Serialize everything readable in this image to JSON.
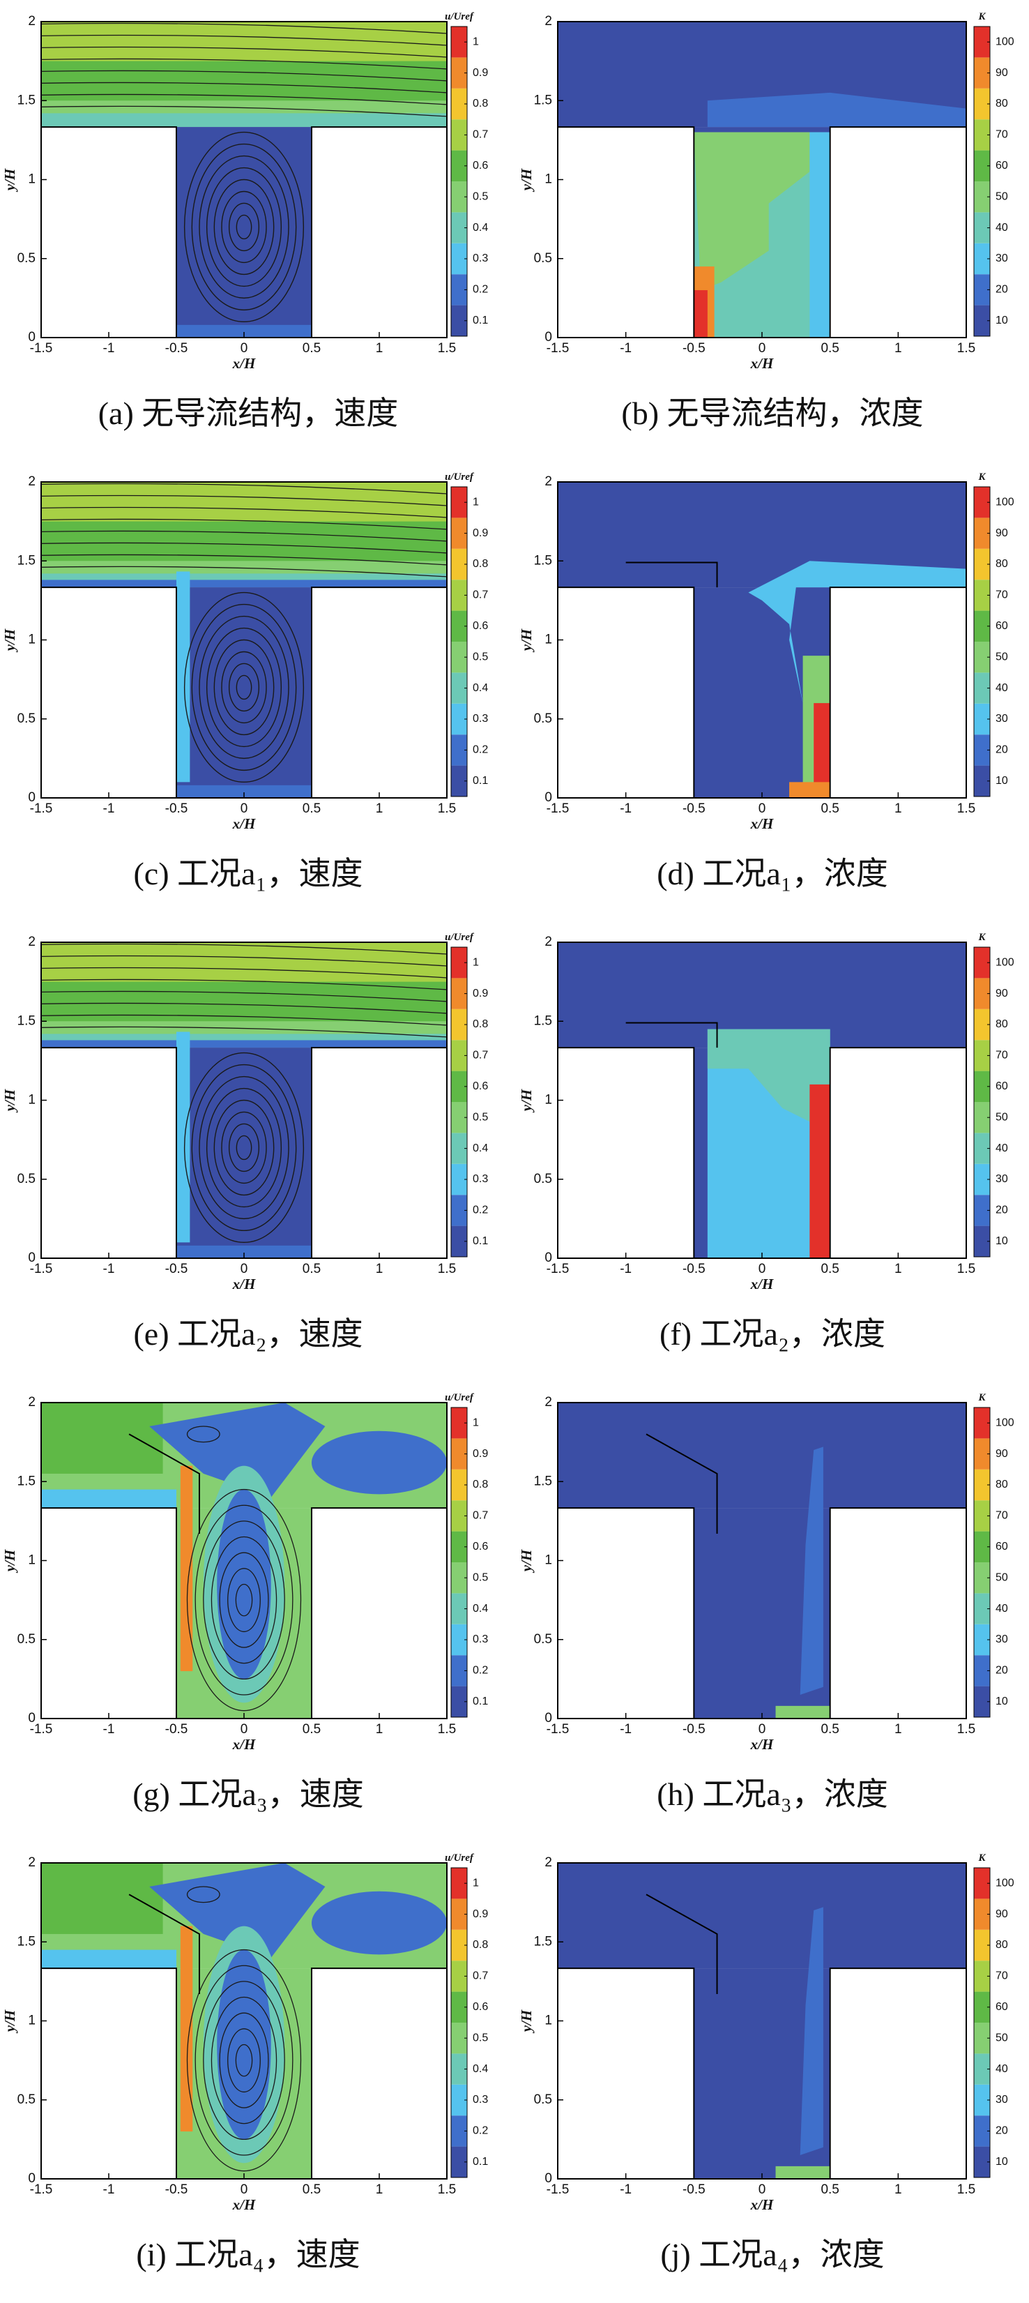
{
  "chart_data": [
    {
      "type": "contour",
      "caption": "(a) 无导流结构，速度",
      "x_label": "x/H",
      "y_label": "y/H",
      "xlim": [
        -1.5,
        1.5
      ],
      "ylim": [
        0,
        2
      ],
      "xticks": [
        -1.5,
        -1,
        -0.5,
        0,
        0.5,
        1,
        1.5
      ],
      "yticks": [
        0,
        0.5,
        1,
        1.5,
        2
      ],
      "colorbar": {
        "label": "u/Uref",
        "lim": [
          0.05,
          1.05
        ],
        "ticks": [
          0.1,
          0.2,
          0.3,
          0.4,
          0.5,
          0.6,
          0.7,
          0.8,
          0.9,
          1
        ],
        "colors": [
          "#3b4ea5",
          "#3f6fcb",
          "#55c3ee",
          "#6cc9b6",
          "#86cf72",
          "#5fb946",
          "#a7d045",
          "#f3c52e",
          "#f08a2c",
          "#e3312a"
        ]
      }
    },
    {
      "type": "contour",
      "caption": "(b) 无导流结构，浓度",
      "x_label": "x/H",
      "y_label": "y/H",
      "xlim": [
        -1.5,
        1.5
      ],
      "ylim": [
        0,
        2
      ],
      "xticks": [
        -1.5,
        -1,
        -0.5,
        0,
        0.5,
        1,
        1.5
      ],
      "yticks": [
        0,
        0.5,
        1,
        1.5,
        2
      ],
      "colorbar": {
        "label": "K",
        "lim": [
          5,
          105
        ],
        "ticks": [
          10,
          20,
          30,
          40,
          50,
          60,
          70,
          80,
          90,
          100
        ],
        "colors": [
          "#3b4ea5",
          "#3f6fcb",
          "#55c3ee",
          "#6cc9b6",
          "#86cf72",
          "#5fb946",
          "#a7d045",
          "#f3c52e",
          "#f08a2c",
          "#e3312a"
        ]
      }
    },
    {
      "type": "contour",
      "caption": "(c) 工况a₁，速度",
      "x_label": "x/H",
      "y_label": "y/H",
      "xlim": [
        -1.5,
        1.5
      ],
      "ylim": [
        0,
        2
      ],
      "xticks": [
        -1.5,
        -1,
        -0.5,
        0,
        0.5,
        1,
        1.5
      ],
      "yticks": [
        0,
        0.5,
        1,
        1.5,
        2
      ],
      "colorbar": {
        "label": "u/Uref",
        "lim": [
          0.05,
          1.05
        ],
        "ticks": [
          0.1,
          0.2,
          0.3,
          0.4,
          0.5,
          0.6,
          0.7,
          0.8,
          0.9,
          1
        ],
        "colors": [
          "#3b4ea5",
          "#3f6fcb",
          "#55c3ee",
          "#6cc9b6",
          "#86cf72",
          "#5fb946",
          "#a7d045",
          "#f3c52e",
          "#f08a2c",
          "#e3312a"
        ]
      }
    },
    {
      "type": "contour",
      "caption": "(d) 工况a₁，浓度",
      "x_label": "x/H",
      "y_label": "y/H",
      "xlim": [
        -1.5,
        1.5
      ],
      "ylim": [
        0,
        2
      ],
      "xticks": [
        -1.5,
        -1,
        -0.5,
        0,
        0.5,
        1,
        1.5
      ],
      "yticks": [
        0,
        0.5,
        1,
        1.5,
        2
      ],
      "colorbar": {
        "label": "K",
        "lim": [
          5,
          105
        ],
        "ticks": [
          10,
          20,
          30,
          40,
          50,
          60,
          70,
          80,
          90,
          100
        ],
        "colors": [
          "#3b4ea5",
          "#3f6fcb",
          "#55c3ee",
          "#6cc9b6",
          "#86cf72",
          "#5fb946",
          "#a7d045",
          "#f3c52e",
          "#f08a2c",
          "#e3312a"
        ]
      }
    },
    {
      "type": "contour",
      "caption": "(e) 工况a₂，速度",
      "x_label": "x/H",
      "y_label": "y/H",
      "xlim": [
        -1.5,
        1.5
      ],
      "ylim": [
        0,
        2
      ],
      "xticks": [
        -1.5,
        -1,
        -0.5,
        0,
        0.5,
        1,
        1.5
      ],
      "yticks": [
        0,
        0.5,
        1,
        1.5,
        2
      ],
      "colorbar": {
        "label": "u/Uref",
        "lim": [
          0.05,
          1.05
        ],
        "ticks": [
          0.1,
          0.2,
          0.3,
          0.4,
          0.5,
          0.6,
          0.7,
          0.8,
          0.9,
          1
        ],
        "colors": [
          "#3b4ea5",
          "#3f6fcb",
          "#55c3ee",
          "#6cc9b6",
          "#86cf72",
          "#5fb946",
          "#a7d045",
          "#f3c52e",
          "#f08a2c",
          "#e3312a"
        ]
      }
    },
    {
      "type": "contour",
      "caption": "(f) 工况a₂，浓度",
      "x_label": "x/H",
      "y_label": "y/H",
      "xlim": [
        -1.5,
        1.5
      ],
      "ylim": [
        0,
        2
      ],
      "xticks": [
        -1.5,
        -1,
        -0.5,
        0,
        0.5,
        1,
        1.5
      ],
      "yticks": [
        0,
        0.5,
        1,
        1.5,
        2
      ],
      "colorbar": {
        "label": "K",
        "lim": [
          5,
          105
        ],
        "ticks": [
          10,
          20,
          30,
          40,
          50,
          60,
          70,
          80,
          90,
          100
        ],
        "colors": [
          "#3b4ea5",
          "#3f6fcb",
          "#55c3ee",
          "#6cc9b6",
          "#86cf72",
          "#5fb946",
          "#a7d045",
          "#f3c52e",
          "#f08a2c",
          "#e3312a"
        ]
      }
    },
    {
      "type": "contour",
      "caption": "(g) 工况a₃，速度",
      "x_label": "x/H",
      "y_label": "y/H",
      "xlim": [
        -1.5,
        1.5
      ],
      "ylim": [
        0,
        2
      ],
      "xticks": [
        -1.5,
        -1,
        -0.5,
        0,
        0.5,
        1,
        1.5
      ],
      "yticks": [
        0,
        0.5,
        1,
        1.5,
        2
      ],
      "colorbar": {
        "label": "u/Uref",
        "lim": [
          0.05,
          1.05
        ],
        "ticks": [
          0.1,
          0.2,
          0.3,
          0.4,
          0.5,
          0.6,
          0.7,
          0.8,
          0.9,
          1
        ],
        "colors": [
          "#3b4ea5",
          "#3f6fcb",
          "#55c3ee",
          "#6cc9b6",
          "#86cf72",
          "#5fb946",
          "#a7d045",
          "#f3c52e",
          "#f08a2c",
          "#e3312a"
        ]
      }
    },
    {
      "type": "contour",
      "caption": "(h) 工况a₃，浓度",
      "x_label": "x/H",
      "y_label": "y/H",
      "xlim": [
        -1.5,
        1.5
      ],
      "ylim": [
        0,
        2
      ],
      "xticks": [
        -1.5,
        -1,
        -0.5,
        0,
        0.5,
        1,
        1.5
      ],
      "yticks": [
        0,
        0.5,
        1,
        1.5,
        2
      ],
      "colorbar": {
        "label": "K",
        "lim": [
          5,
          105
        ],
        "ticks": [
          10,
          20,
          30,
          40,
          50,
          60,
          70,
          80,
          90,
          100
        ],
        "colors": [
          "#3b4ea5",
          "#3f6fcb",
          "#55c3ee",
          "#6cc9b6",
          "#86cf72",
          "#5fb946",
          "#a7d045",
          "#f3c52e",
          "#f08a2c",
          "#e3312a"
        ]
      }
    },
    {
      "type": "contour",
      "caption": "(i) 工况a₄，速度",
      "x_label": "x/H",
      "y_label": "y/H",
      "xlim": [
        -1.5,
        1.5
      ],
      "ylim": [
        0,
        2
      ],
      "xticks": [
        -1.5,
        -1,
        -0.5,
        0,
        0.5,
        1,
        1.5
      ],
      "yticks": [
        0,
        0.5,
        1,
        1.5,
        2
      ],
      "colorbar": {
        "label": "u/Uref",
        "lim": [
          0.05,
          1.05
        ],
        "ticks": [
          0.1,
          0.2,
          0.3,
          0.4,
          0.5,
          0.6,
          0.7,
          0.8,
          0.9,
          1
        ],
        "colors": [
          "#3b4ea5",
          "#3f6fcb",
          "#55c3ee",
          "#6cc9b6",
          "#86cf72",
          "#5fb946",
          "#a7d045",
          "#f3c52e",
          "#f08a2c",
          "#e3312a"
        ]
      }
    },
    {
      "type": "contour",
      "caption": "(j) 工况a₄，浓度",
      "x_label": "x/H",
      "y_label": "y/H",
      "xlim": [
        -1.5,
        1.5
      ],
      "ylim": [
        0,
        2
      ],
      "xticks": [
        -1.5,
        -1,
        -0.5,
        0,
        0.5,
        1,
        1.5
      ],
      "yticks": [
        0,
        0.5,
        1,
        1.5,
        2
      ],
      "colorbar": {
        "label": "K",
        "lim": [
          5,
          105
        ],
        "ticks": [
          10,
          20,
          30,
          40,
          50,
          60,
          70,
          80,
          90,
          100
        ],
        "colors": [
          "#3b4ea5",
          "#3f6fcb",
          "#55c3ee",
          "#6cc9b6",
          "#86cf72",
          "#5fb946",
          "#a7d045",
          "#f3c52e",
          "#f08a2c",
          "#e3312a"
        ]
      }
    }
  ]
}
